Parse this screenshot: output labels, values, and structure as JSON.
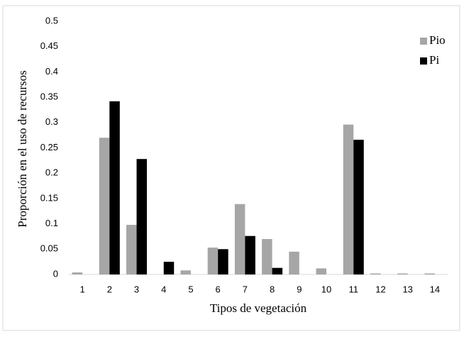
{
  "chart_data": {
    "type": "bar",
    "x_label": "Tipos de vegetación",
    "y_label": "Proporción en el uso de recursos",
    "categories": [
      "1",
      "2",
      "3",
      "4",
      "5",
      "6",
      "7",
      "8",
      "9",
      "10",
      "11",
      "12",
      "13",
      "14"
    ],
    "series": [
      {
        "name": "Pio",
        "color": "#a6a6a6",
        "values": [
          0.004,
          0.27,
          0.098,
          0,
          0.008,
          0.053,
          0.139,
          0.07,
          0.045,
          0.012,
          0.296,
          0.002,
          0.002,
          0.002
        ]
      },
      {
        "name": "Pi",
        "color": "#000000",
        "values": [
          0,
          0.342,
          0.228,
          0.025,
          0,
          0.05,
          0.076,
          0.013,
          0,
          0,
          0.266,
          0,
          0,
          0
        ]
      }
    ],
    "ylim": [
      0,
      0.5
    ],
    "yticks": [
      0,
      0.05,
      0.1,
      0.15,
      0.2,
      0.25,
      0.3,
      0.35,
      0.4,
      0.45,
      0.5
    ],
    "grid": false,
    "legend": "top-right"
  }
}
